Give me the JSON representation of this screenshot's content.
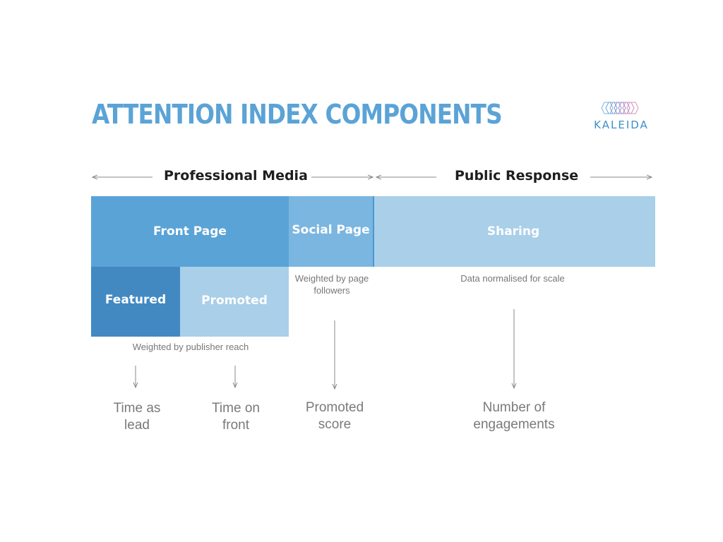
{
  "title": "ATTENTION INDEX COMPONENTS",
  "logo": {
    "text": "KALEIDA"
  },
  "sections": {
    "professional": "Professional Media",
    "public": "Public Response"
  },
  "blocks": {
    "front_page": "Front Page",
    "social_page": "Social Page",
    "sharing": "Sharing",
    "featured": "Featured",
    "promoted": "Promoted"
  },
  "notes": {
    "social": "Weighted by page followers",
    "sharing": "Data normalised for scale",
    "publisher": "Weighted by publisher reach"
  },
  "outcomes": {
    "time_as_lead": "Time as lead",
    "time_on_front": "Time on front",
    "promoted_score": "Promoted score",
    "engagements": "Number of engagements"
  },
  "colors": {
    "title": "#5ba3d6",
    "front_page": "#5aa3d6",
    "social_page": "#7ab6e0",
    "sharing": "#a9cfe9",
    "featured": "#4289c2",
    "promoted": "#a9cfe9"
  }
}
